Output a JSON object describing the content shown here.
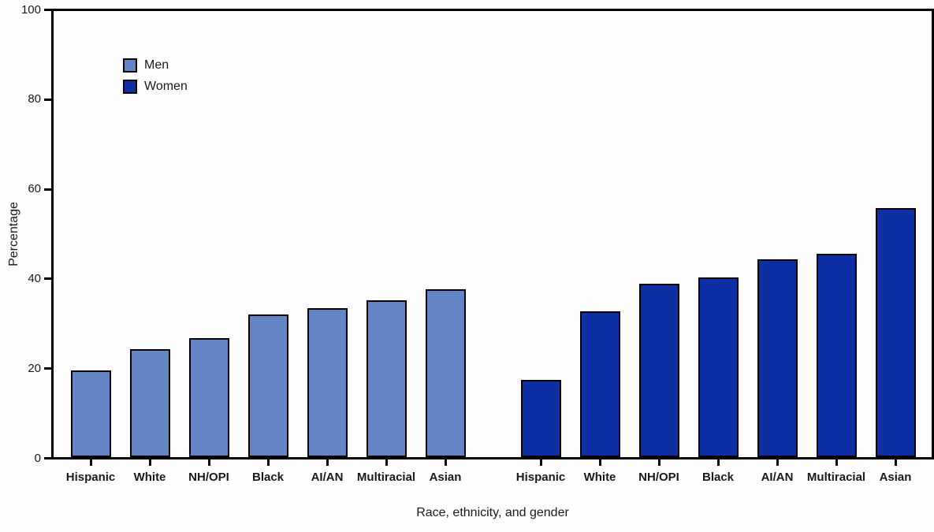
{
  "figure": {
    "background": "#fefefe",
    "text_color": "#1a1a1a",
    "line_color": "#000000"
  },
  "chart_data": {
    "type": "bar",
    "title": "",
    "xlabel": "Race, ethnicity, and gender",
    "ylabel": "Percentage",
    "categories": [
      "Hispanic",
      "White",
      "NH/OPI",
      "Black",
      "AI/AN",
      "Multiracial",
      "Asian"
    ],
    "series": [
      {
        "name": "Men",
        "color": "#6485C5",
        "values": [
          19.5,
          24.2,
          26.7,
          31.9,
          33.4,
          35.2,
          37.6
        ]
      },
      {
        "name": "Women",
        "color": "#0E2FA4",
        "values": [
          17.4,
          32.6,
          38.9,
          40.3,
          44.3,
          45.5,
          55.8
        ]
      }
    ],
    "ylim": [
      0,
      100
    ],
    "yticks": [
      0,
      20,
      40,
      60,
      80,
      100
    ],
    "grid": false,
    "legend_position": "upper left inside plot",
    "frame": "full box",
    "bar_edge_color": "#000000",
    "layout_note": "two side-by-side groups of 7 bars: Men (light blue) on left half, Women (dark blue) on right half"
  }
}
